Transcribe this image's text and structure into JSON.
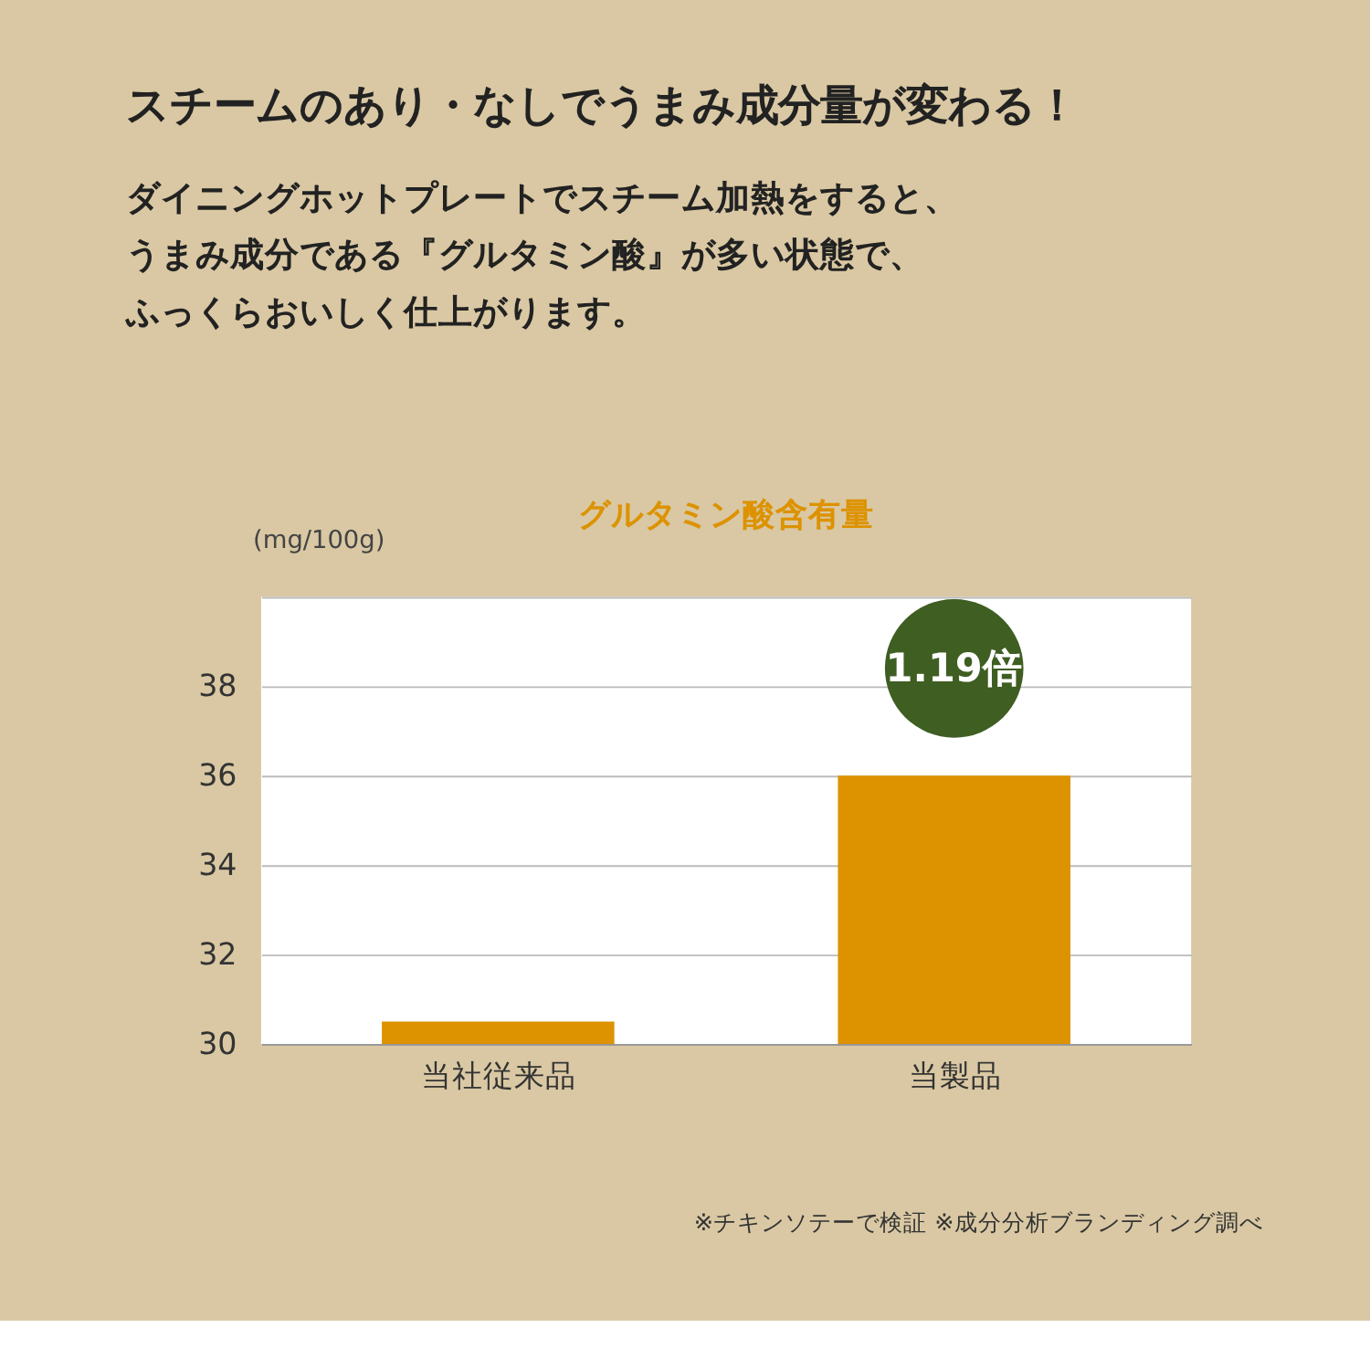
{
  "chart_data": {
    "type": "bar",
    "title": "スチームのあり・なしでうまみ成分量が変わる！",
    "subtitle": "ダイニングホットプレートでスチーム加熱をすると、うまみ成分である『グルタミン酸』が多い状態で、ふっくらおいしく仕上がります。",
    "ylabel": "(mg/100g)",
    "categories": [
      "当社従来品",
      "当製品"
    ],
    "values": [
      30.5,
      36
    ],
    "color": "#dd9200",
    "ylim": [
      30,
      40
    ],
    "yticks": [
      30,
      32,
      34,
      36,
      38,
      {
        "value": 40,
        "label": null
      }
    ],
    "grid": "y",
    "annotations": [
      "グルタミン酸含有量",
      {
        "text": "1.19倍",
        "x": "当製品",
        "y": 36
      },
      "※チキンソテーで検証 ※成分分析ブランディング調べ"
    ]
  }
}
